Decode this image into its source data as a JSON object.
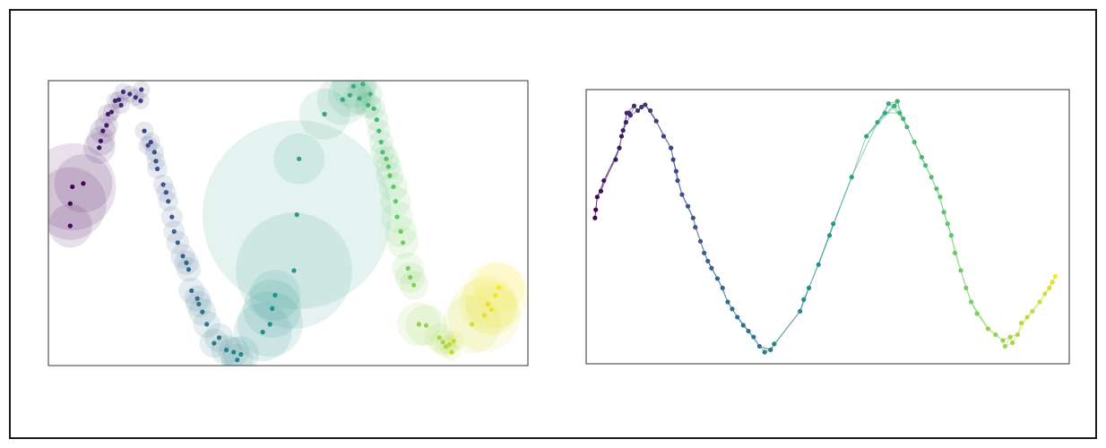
{
  "figure": {
    "panels": [
      "circles-plot",
      "graph-plot"
    ]
  },
  "chart_data": [
    {
      "type": "scatter",
      "subtype": "bubble",
      "title": "",
      "xlabel": "",
      "ylabel": "",
      "xlim": [
        0,
        6.6
      ],
      "ylim": [
        -1.25,
        1.3
      ],
      "axes_ticks": false,
      "grid": false,
      "legend": "none",
      "colormap": "viridis",
      "colors": {
        "fill_alpha": 0.12,
        "stops": [
          "#440154",
          "#3b528b",
          "#21918c",
          "#5ec962",
          "#fde725"
        ]
      },
      "points": [
        {
          "x": 0.33,
          "y": 0.35,
          "r": 0.6,
          "c": 0.0
        },
        {
          "x": 0.3,
          "y": 0.2,
          "r": 0.5,
          "c": 0.01
        },
        {
          "x": 0.48,
          "y": 0.38,
          "r": 0.4,
          "c": 0.02
        },
        {
          "x": 0.3,
          "y": 0.0,
          "r": 0.3,
          "c": 0.03
        },
        {
          "x": 0.7,
          "y": 0.7,
          "r": 0.22,
          "c": 0.05
        },
        {
          "x": 0.72,
          "y": 0.76,
          "r": 0.2,
          "c": 0.06
        },
        {
          "x": 0.75,
          "y": 0.85,
          "r": 0.18,
          "c": 0.07
        },
        {
          "x": 0.8,
          "y": 0.9,
          "r": 0.16,
          "c": 0.08
        },
        {
          "x": 0.82,
          "y": 1.0,
          "r": 0.14,
          "c": 0.09
        },
        {
          "x": 0.87,
          "y": 1.02,
          "r": 0.12,
          "c": 0.1
        },
        {
          "x": 0.92,
          "y": 1.12,
          "r": 0.12,
          "c": 0.11
        },
        {
          "x": 0.97,
          "y": 1.13,
          "r": 0.12,
          "c": 0.12
        },
        {
          "x": 1.0,
          "y": 1.08,
          "r": 0.12,
          "c": 0.13
        },
        {
          "x": 1.03,
          "y": 1.2,
          "r": 0.12,
          "c": 0.14
        },
        {
          "x": 1.12,
          "y": 1.18,
          "r": 0.12,
          "c": 0.15
        },
        {
          "x": 1.2,
          "y": 1.15,
          "r": 0.12,
          "c": 0.16
        },
        {
          "x": 1.28,
          "y": 1.22,
          "r": 0.12,
          "c": 0.17
        },
        {
          "x": 1.27,
          "y": 1.12,
          "r": 0.12,
          "c": 0.18
        },
        {
          "x": 1.32,
          "y": 0.85,
          "r": 0.13,
          "c": 0.2
        },
        {
          "x": 1.41,
          "y": 0.75,
          "r": 0.13,
          "c": 0.21
        },
        {
          "x": 1.37,
          "y": 0.72,
          "r": 0.13,
          "c": 0.22
        },
        {
          "x": 1.46,
          "y": 0.66,
          "r": 0.13,
          "c": 0.23
        },
        {
          "x": 1.48,
          "y": 0.58,
          "r": 0.13,
          "c": 0.24
        },
        {
          "x": 1.5,
          "y": 0.51,
          "r": 0.14,
          "c": 0.25
        },
        {
          "x": 1.58,
          "y": 0.37,
          "r": 0.14,
          "c": 0.26
        },
        {
          "x": 1.62,
          "y": 0.3,
          "r": 0.14,
          "c": 0.27
        },
        {
          "x": 1.65,
          "y": 0.22,
          "r": 0.14,
          "c": 0.28
        },
        {
          "x": 1.7,
          "y": 0.08,
          "r": 0.15,
          "c": 0.29
        },
        {
          "x": 1.73,
          "y": -0.05,
          "r": 0.15,
          "c": 0.3
        },
        {
          "x": 1.78,
          "y": -0.15,
          "r": 0.16,
          "c": 0.31
        },
        {
          "x": 1.85,
          "y": -0.27,
          "r": 0.17,
          "c": 0.32
        },
        {
          "x": 1.9,
          "y": -0.33,
          "r": 0.17,
          "c": 0.33
        },
        {
          "x": 1.93,
          "y": -0.39,
          "r": 0.17,
          "c": 0.34
        },
        {
          "x": 1.97,
          "y": -0.58,
          "r": 0.18,
          "c": 0.35
        },
        {
          "x": 2.05,
          "y": -0.65,
          "r": 0.18,
          "c": 0.36
        },
        {
          "x": 2.07,
          "y": -0.7,
          "r": 0.18,
          "c": 0.37
        },
        {
          "x": 2.12,
          "y": -0.77,
          "r": 0.19,
          "c": 0.38
        },
        {
          "x": 2.18,
          "y": -0.88,
          "r": 0.19,
          "c": 0.39
        },
        {
          "x": 2.28,
          "y": -1.05,
          "r": 0.2,
          "c": 0.4
        },
        {
          "x": 2.35,
          "y": -1.0,
          "r": 0.2,
          "c": 0.41
        },
        {
          "x": 2.45,
          "y": -1.11,
          "r": 0.21,
          "c": 0.42
        },
        {
          "x": 2.55,
          "y": -1.13,
          "r": 0.21,
          "c": 0.43
        },
        {
          "x": 2.6,
          "y": -1.2,
          "r": 0.22,
          "c": 0.44
        },
        {
          "x": 2.65,
          "y": -1.15,
          "r": 0.25,
          "c": 0.45
        },
        {
          "x": 2.95,
          "y": -0.95,
          "r": 0.4,
          "c": 0.47
        },
        {
          "x": 3.05,
          "y": -0.88,
          "r": 0.45,
          "c": 0.48
        },
        {
          "x": 3.08,
          "y": -0.74,
          "r": 0.4,
          "c": 0.49
        },
        {
          "x": 3.12,
          "y": -0.62,
          "r": 0.35,
          "c": 0.5
        },
        {
          "x": 3.38,
          "y": -0.4,
          "r": 0.8,
          "c": 0.52
        },
        {
          "x": 3.42,
          "y": 0.1,
          "r": 1.3,
          "c": 0.54
        },
        {
          "x": 3.45,
          "y": 0.6,
          "r": 0.35,
          "c": 0.55
        },
        {
          "x": 3.8,
          "y": 1.0,
          "r": 0.35,
          "c": 0.58
        },
        {
          "x": 4.05,
          "y": 1.13,
          "r": 0.35,
          "c": 0.59
        },
        {
          "x": 4.15,
          "y": 1.17,
          "r": 0.3,
          "c": 0.6
        },
        {
          "x": 4.2,
          "y": 1.25,
          "r": 0.3,
          "c": 0.61
        },
        {
          "x": 4.28,
          "y": 1.14,
          "r": 0.22,
          "c": 0.62
        },
        {
          "x": 4.33,
          "y": 1.27,
          "r": 0.2,
          "c": 0.63
        },
        {
          "x": 4.4,
          "y": 1.08,
          "r": 0.18,
          "c": 0.64
        },
        {
          "x": 4.43,
          "y": 1.18,
          "r": 0.17,
          "c": 0.65
        },
        {
          "x": 4.48,
          "y": 1.05,
          "r": 0.16,
          "c": 0.66
        },
        {
          "x": 4.52,
          "y": 0.95,
          "r": 0.16,
          "c": 0.67
        },
        {
          "x": 4.55,
          "y": 0.85,
          "r": 0.16,
          "c": 0.68
        },
        {
          "x": 4.58,
          "y": 0.75,
          "r": 0.17,
          "c": 0.69
        },
        {
          "x": 4.6,
          "y": 0.66,
          "r": 0.17,
          "c": 0.7
        },
        {
          "x": 4.65,
          "y": 0.6,
          "r": 0.18,
          "c": 0.71
        },
        {
          "x": 4.68,
          "y": 0.53,
          "r": 0.18,
          "c": 0.72
        },
        {
          "x": 4.7,
          "y": 0.45,
          "r": 0.19,
          "c": 0.73
        },
        {
          "x": 4.75,
          "y": 0.35,
          "r": 0.2,
          "c": 0.74
        },
        {
          "x": 4.78,
          "y": 0.22,
          "r": 0.21,
          "c": 0.75
        },
        {
          "x": 4.8,
          "y": 0.08,
          "r": 0.22,
          "c": 0.76
        },
        {
          "x": 4.85,
          "y": -0.05,
          "r": 0.22,
          "c": 0.77
        },
        {
          "x": 4.88,
          "y": -0.15,
          "r": 0.22,
          "c": 0.78
        },
        {
          "x": 4.95,
          "y": -0.38,
          "r": 0.22,
          "c": 0.79
        },
        {
          "x": 4.98,
          "y": -0.46,
          "r": 0.21,
          "c": 0.8
        },
        {
          "x": 5.03,
          "y": -0.53,
          "r": 0.2,
          "c": 0.81
        },
        {
          "x": 5.1,
          "y": -0.88,
          "r": 0.3,
          "c": 0.83
        },
        {
          "x": 5.2,
          "y": -0.89,
          "r": 0.28,
          "c": 0.84
        },
        {
          "x": 5.38,
          "y": -1.0,
          "r": 0.2,
          "c": 0.86
        },
        {
          "x": 5.43,
          "y": -1.04,
          "r": 0.18,
          "c": 0.87
        },
        {
          "x": 5.47,
          "y": -1.08,
          "r": 0.15,
          "c": 0.88
        },
        {
          "x": 5.52,
          "y": -1.06,
          "r": 0.14,
          "c": 0.89
        },
        {
          "x": 5.55,
          "y": -1.13,
          "r": 0.12,
          "c": 0.9
        },
        {
          "x": 5.58,
          "y": -1.03,
          "r": 0.14,
          "c": 0.91
        },
        {
          "x": 5.83,
          "y": -0.88,
          "r": 0.4,
          "c": 0.93
        },
        {
          "x": 6.0,
          "y": -0.8,
          "r": 0.5,
          "c": 0.95
        },
        {
          "x": 6.05,
          "y": -0.7,
          "r": 0.4,
          "c": 0.96
        },
        {
          "x": 6.1,
          "y": -0.75,
          "r": 0.35,
          "c": 0.97
        },
        {
          "x": 6.15,
          "y": -0.62,
          "r": 0.45,
          "c": 0.98
        },
        {
          "x": 6.2,
          "y": -0.55,
          "r": 0.35,
          "c": 1.0
        }
      ]
    },
    {
      "type": "network",
      "title": "",
      "xlabel": "",
      "ylabel": "",
      "xlim": [
        -0.1,
        6.45
      ],
      "ylim": [
        -1.15,
        1.2
      ],
      "axes_ticks": false,
      "grid": false,
      "legend": "none",
      "colormap": "viridis",
      "nodes": [
        {
          "x": 0.02,
          "y": 0.1,
          "c": 0.0
        },
        {
          "x": 0.03,
          "y": 0.17,
          "c": 0.01
        },
        {
          "x": 0.05,
          "y": 0.28,
          "c": 0.02
        },
        {
          "x": 0.1,
          "y": 0.33,
          "c": 0.03
        },
        {
          "x": 0.14,
          "y": 0.42,
          "c": 0.04
        },
        {
          "x": 0.3,
          "y": 0.6,
          "c": 0.05
        },
        {
          "x": 0.35,
          "y": 0.7,
          "c": 0.06
        },
        {
          "x": 0.38,
          "y": 0.8,
          "c": 0.07
        },
        {
          "x": 0.4,
          "y": 0.85,
          "c": 0.08
        },
        {
          "x": 0.44,
          "y": 0.92,
          "c": 0.09
        },
        {
          "x": 0.45,
          "y": 1.0,
          "c": 0.1
        },
        {
          "x": 0.48,
          "y": 1.0,
          "c": 0.11
        },
        {
          "x": 0.5,
          "y": 0.98,
          "c": 0.12
        },
        {
          "x": 0.55,
          "y": 1.06,
          "c": 0.13
        },
        {
          "x": 0.6,
          "y": 1.02,
          "c": 0.14
        },
        {
          "x": 0.65,
          "y": 1.05,
          "c": 0.15
        },
        {
          "x": 0.7,
          "y": 1.07,
          "c": 0.16
        },
        {
          "x": 0.77,
          "y": 1.02,
          "c": 0.17
        },
        {
          "x": 0.85,
          "y": 0.93,
          "c": 0.18
        },
        {
          "x": 0.95,
          "y": 0.8,
          "c": 0.19
        },
        {
          "x": 1.05,
          "y": 0.7,
          "c": 0.2
        },
        {
          "x": 1.08,
          "y": 0.6,
          "c": 0.21
        },
        {
          "x": 1.12,
          "y": 0.5,
          "c": 0.22
        },
        {
          "x": 1.14,
          "y": 0.42,
          "c": 0.23
        },
        {
          "x": 1.2,
          "y": 0.3,
          "c": 0.24
        },
        {
          "x": 1.28,
          "y": 0.2,
          "c": 0.25
        },
        {
          "x": 1.35,
          "y": 0.1,
          "c": 0.26
        },
        {
          "x": 1.38,
          "y": 0.02,
          "c": 0.27
        },
        {
          "x": 1.45,
          "y": -0.1,
          "c": 0.28
        },
        {
          "x": 1.5,
          "y": -0.2,
          "c": 0.29
        },
        {
          "x": 1.55,
          "y": -0.27,
          "c": 0.3
        },
        {
          "x": 1.6,
          "y": -0.33,
          "c": 0.31
        },
        {
          "x": 1.68,
          "y": -0.42,
          "c": 0.32
        },
        {
          "x": 1.75,
          "y": -0.5,
          "c": 0.33
        },
        {
          "x": 1.82,
          "y": -0.62,
          "c": 0.34
        },
        {
          "x": 1.88,
          "y": -0.68,
          "c": 0.35
        },
        {
          "x": 1.95,
          "y": -0.75,
          "c": 0.36
        },
        {
          "x": 2.03,
          "y": -0.82,
          "c": 0.37
        },
        {
          "x": 2.1,
          "y": -0.87,
          "c": 0.38
        },
        {
          "x": 2.17,
          "y": -0.92,
          "c": 0.39
        },
        {
          "x": 2.25,
          "y": -1.0,
          "c": 0.4
        },
        {
          "x": 2.32,
          "y": -1.05,
          "c": 0.41
        },
        {
          "x": 2.4,
          "y": -1.03,
          "c": 0.42
        },
        {
          "x": 2.45,
          "y": -0.98,
          "c": 0.43
        },
        {
          "x": 2.8,
          "y": -0.7,
          "c": 0.46
        },
        {
          "x": 2.85,
          "y": -0.6,
          "c": 0.47
        },
        {
          "x": 2.92,
          "y": -0.5,
          "c": 0.48
        },
        {
          "x": 3.05,
          "y": -0.3,
          "c": 0.5
        },
        {
          "x": 3.2,
          "y": -0.05,
          "c": 0.52
        },
        {
          "x": 3.25,
          "y": 0.05,
          "c": 0.53
        },
        {
          "x": 3.5,
          "y": 0.45,
          "c": 0.56
        },
        {
          "x": 3.7,
          "y": 0.8,
          "c": 0.58
        },
        {
          "x": 3.85,
          "y": 0.92,
          "c": 0.59
        },
        {
          "x": 3.95,
          "y": 1.0,
          "c": 0.6
        },
        {
          "x": 4.0,
          "y": 1.08,
          "c": 0.61
        },
        {
          "x": 4.08,
          "y": 1.06,
          "c": 0.62
        },
        {
          "x": 4.12,
          "y": 1.1,
          "c": 0.63
        },
        {
          "x": 4.15,
          "y": 1.0,
          "c": 0.64
        },
        {
          "x": 4.2,
          "y": 0.95,
          "c": 0.65
        },
        {
          "x": 4.25,
          "y": 0.88,
          "c": 0.66
        },
        {
          "x": 4.35,
          "y": 0.75,
          "c": 0.67
        },
        {
          "x": 4.45,
          "y": 0.62,
          "c": 0.68
        },
        {
          "x": 4.5,
          "y": 0.55,
          "c": 0.69
        },
        {
          "x": 4.58,
          "y": 0.45,
          "c": 0.7
        },
        {
          "x": 4.65,
          "y": 0.35,
          "c": 0.71
        },
        {
          "x": 4.7,
          "y": 0.28,
          "c": 0.72
        },
        {
          "x": 4.75,
          "y": 0.15,
          "c": 0.73
        },
        {
          "x": 4.8,
          "y": 0.05,
          "c": 0.74
        },
        {
          "x": 4.85,
          "y": -0.05,
          "c": 0.75
        },
        {
          "x": 4.9,
          "y": -0.2,
          "c": 0.76
        },
        {
          "x": 4.98,
          "y": -0.35,
          "c": 0.77
        },
        {
          "x": 5.05,
          "y": -0.5,
          "c": 0.78
        },
        {
          "x": 5.12,
          "y": -0.62,
          "c": 0.79
        },
        {
          "x": 5.2,
          "y": -0.72,
          "c": 0.8
        },
        {
          "x": 5.35,
          "y": -0.85,
          "c": 0.82
        },
        {
          "x": 5.45,
          "y": -0.9,
          "c": 0.83
        },
        {
          "x": 5.55,
          "y": -0.95,
          "c": 0.84
        },
        {
          "x": 5.58,
          "y": -1.0,
          "c": 0.85
        },
        {
          "x": 5.65,
          "y": -0.92,
          "c": 0.86
        },
        {
          "x": 5.68,
          "y": -0.97,
          "c": 0.87
        },
        {
          "x": 5.75,
          "y": -0.9,
          "c": 0.88
        },
        {
          "x": 5.8,
          "y": -0.8,
          "c": 0.89
        },
        {
          "x": 5.88,
          "y": -0.75,
          "c": 0.9
        },
        {
          "x": 5.95,
          "y": -0.7,
          "c": 0.91
        },
        {
          "x": 6.05,
          "y": -0.62,
          "c": 0.92
        },
        {
          "x": 6.12,
          "y": -0.55,
          "c": 0.93
        },
        {
          "x": 6.18,
          "y": -0.5,
          "c": 0.94
        },
        {
          "x": 6.22,
          "y": -0.45,
          "c": 0.95
        },
        {
          "x": 6.26,
          "y": -0.4,
          "c": 1.0
        }
      ],
      "extra_edges": [
        [
          3,
          6
        ],
        [
          8,
          12
        ],
        [
          10,
          13
        ],
        [
          16,
          18
        ],
        [
          21,
          23
        ],
        [
          24,
          26
        ],
        [
          30,
          32
        ],
        [
          36,
          38
        ],
        [
          40,
          42
        ],
        [
          44,
          46
        ],
        [
          47,
          49
        ],
        [
          51,
          53
        ],
        [
          51,
          55
        ],
        [
          52,
          56
        ],
        [
          53,
          57
        ],
        [
          54,
          58
        ],
        [
          55,
          59
        ],
        [
          60,
          62
        ],
        [
          66,
          68
        ],
        [
          72,
          74
        ],
        [
          76,
          78
        ],
        [
          77,
          79
        ],
        [
          78,
          80
        ],
        [
          82,
          84
        ],
        [
          85,
          87
        ],
        [
          86,
          88
        ]
      ]
    }
  ]
}
